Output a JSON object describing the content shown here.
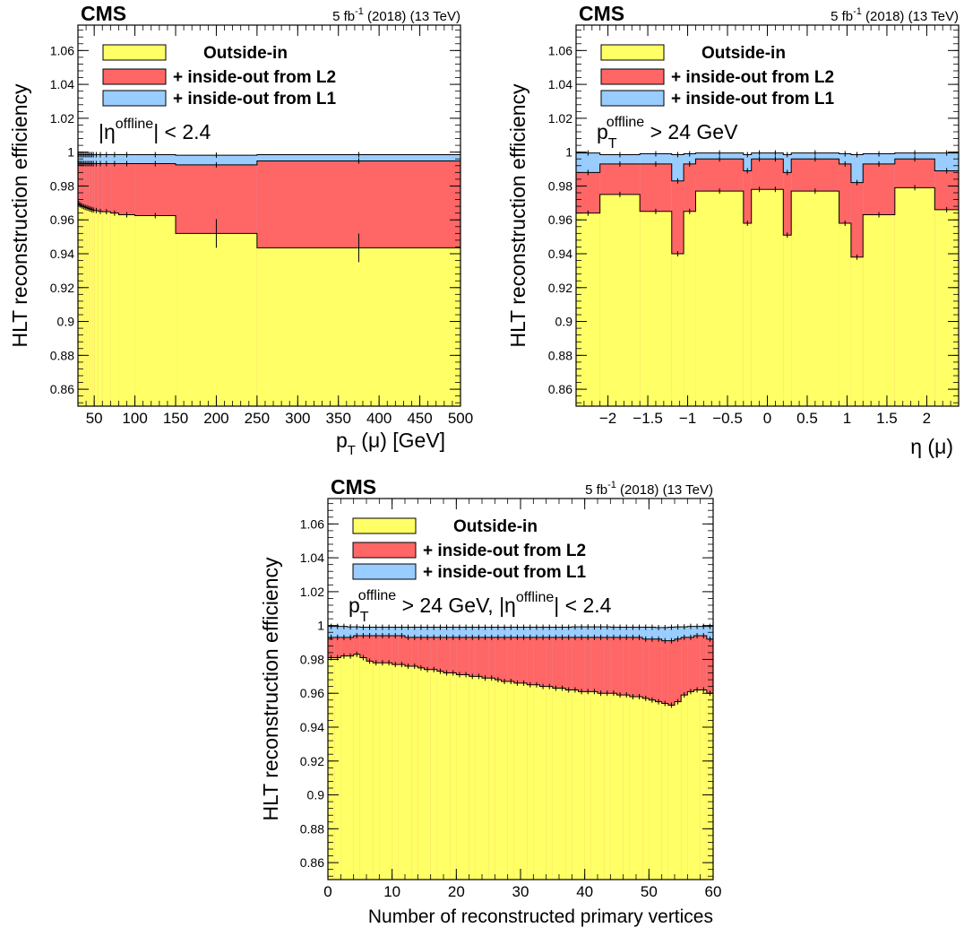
{
  "colors": {
    "outside_in": "#ffff66",
    "l2": "#ff6666",
    "l1": "#99ccff",
    "frame": "#000000"
  },
  "chart_data": [
    {
      "type": "area",
      "experiment": "CMS",
      "lumi_prefix": "5 fb",
      "lumi_sup": "-1",
      "lumi_suffix": " (2018) (13 TeV)",
      "ylabel": "HLT reconstruction efficiency",
      "xlabel": "p_T (μ) [GeV]",
      "xlabel_main": "p",
      "xlabel_sub": "T",
      "xlabel_tail": " (μ) [GeV]",
      "xlim": [
        30,
        500
      ],
      "ylim": [
        0.85,
        1.075
      ],
      "xticks": [
        50,
        100,
        150,
        200,
        250,
        300,
        350,
        400,
        450,
        500
      ],
      "yticks": [
        0.86,
        0.88,
        0.9,
        0.92,
        0.94,
        0.96,
        0.98,
        1,
        1.02,
        1.04,
        1.06
      ],
      "legend_position": "top-left",
      "legend": [
        "Outside-in",
        "+ inside-out from L2",
        "+ inside-out from L1"
      ],
      "annotation": {
        "pre": "|η",
        "sup": "offline",
        "sub": "",
        "post": "| < 2.4"
      },
      "bin_edges": [
        30,
        32,
        34,
        36,
        38,
        40,
        42,
        44,
        46,
        48,
        50,
        55,
        60,
        70,
        80,
        100,
        150,
        250,
        500
      ],
      "series": [
        {
          "name": "Outside-in",
          "values": [
            0.9695,
            0.9688,
            0.9682,
            0.9678,
            0.9674,
            0.9671,
            0.9668,
            0.9664,
            0.9661,
            0.9658,
            0.9655,
            0.965,
            0.9648,
            0.964,
            0.963,
            0.9625,
            0.952,
            0.9435
          ]
        },
        {
          "name": "+ inside-out from L2",
          "values": [
            0.9935,
            0.9934,
            0.9933,
            0.9933,
            0.9932,
            0.9932,
            0.9932,
            0.9932,
            0.9932,
            0.9932,
            0.9932,
            0.9932,
            0.9932,
            0.9932,
            0.9932,
            0.9932,
            0.9925,
            0.9948
          ]
        },
        {
          "name": "+ inside-out from L1",
          "values": [
            0.9985,
            0.9985,
            0.9985,
            0.9985,
            0.9985,
            0.9985,
            0.9985,
            0.9985,
            0.9985,
            0.9985,
            0.9985,
            0.9985,
            0.9985,
            0.9985,
            0.9985,
            0.9985,
            0.9982,
            0.9985
          ]
        }
      ]
    },
    {
      "type": "area",
      "experiment": "CMS",
      "lumi_prefix": "5 fb",
      "lumi_sup": "-1",
      "lumi_suffix": " (2018) (13 TeV)",
      "ylabel": "HLT reconstruction efficiency",
      "xlabel": "η (μ)",
      "xlabel_main": "η (μ)",
      "xlabel_sub": "",
      "xlabel_tail": "",
      "xlim": [
        -2.4,
        2.4
      ],
      "ylim": [
        0.85,
        1.075
      ],
      "xticks": [
        -2,
        -1.5,
        -1,
        -0.5,
        0,
        0.5,
        1,
        1.5,
        2
      ],
      "xtick_labels": [
        "−2",
        "−1.5",
        "−1",
        "−0.5",
        "0",
        "0.5",
        "1",
        "1.5",
        "2"
      ],
      "yticks": [
        0.86,
        0.88,
        0.9,
        0.92,
        0.94,
        0.96,
        0.98,
        1,
        1.02,
        1.04,
        1.06
      ],
      "legend_position": "top-left",
      "legend": [
        "Outside-in",
        "+ inside-out from L2",
        "+ inside-out from L1"
      ],
      "annotation": {
        "pre": "p",
        "sup": "offline",
        "sub": "T",
        "post": " > 24 GeV"
      },
      "bin_edges": [
        -2.4,
        -2.1,
        -1.6,
        -1.2,
        -1.05,
        -0.9,
        -0.3,
        -0.2,
        0.0,
        0.2,
        0.3,
        0.9,
        1.05,
        1.2,
        1.6,
        2.1,
        2.4
      ],
      "series": [
        {
          "name": "Outside-in",
          "values": [
            0.964,
            0.975,
            0.965,
            0.94,
            0.965,
            0.977,
            0.958,
            0.978,
            0.978,
            0.951,
            0.977,
            0.958,
            0.938,
            0.963,
            0.979,
            0.966
          ]
        },
        {
          "name": "+ inside-out from L2",
          "values": [
            0.988,
            0.993,
            0.993,
            0.983,
            0.993,
            0.996,
            0.989,
            0.996,
            0.996,
            0.988,
            0.996,
            0.993,
            0.982,
            0.993,
            0.996,
            0.989
          ]
        },
        {
          "name": "+ inside-out from L1",
          "values": [
            0.9995,
            0.9985,
            0.999,
            0.9985,
            0.999,
            0.9995,
            0.9985,
            0.9995,
            0.9995,
            0.9985,
            0.9995,
            0.999,
            0.9985,
            0.999,
            0.9995,
            0.9995
          ]
        }
      ]
    },
    {
      "type": "area",
      "experiment": "CMS",
      "lumi_prefix": "5 fb",
      "lumi_sup": "-1",
      "lumi_suffix": " (2018) (13 TeV)",
      "ylabel": "HLT reconstruction efficiency",
      "xlabel": "Number of reconstructed primary vertices",
      "xlabel_main": "Number of reconstructed primary vertices",
      "xlabel_sub": "",
      "xlabel_tail": "",
      "xlim": [
        0,
        60
      ],
      "ylim": [
        0.85,
        1.075
      ],
      "xticks": [
        0,
        10,
        20,
        30,
        40,
        50,
        60
      ],
      "yticks": [
        0.86,
        0.88,
        0.9,
        0.92,
        0.94,
        0.96,
        0.98,
        1,
        1.02,
        1.04,
        1.06
      ],
      "legend_position": "top-left",
      "legend": [
        "Outside-in",
        "+ inside-out from L2",
        "+ inside-out from L1"
      ],
      "annotation": {
        "pre": "p",
        "sup": "offline",
        "sub": "T",
        "post": " > 24 GeV, |η",
        "sup2": "offline",
        "post2": "| < 2.4"
      },
      "bin_edges": [
        0,
        1,
        2,
        3,
        4,
        5,
        6,
        7,
        8,
        9,
        10,
        11,
        12,
        13,
        14,
        15,
        16,
        17,
        18,
        19,
        20,
        21,
        22,
        23,
        24,
        25,
        26,
        27,
        28,
        29,
        30,
        31,
        32,
        33,
        34,
        35,
        36,
        37,
        38,
        39,
        40,
        41,
        42,
        43,
        44,
        45,
        46,
        47,
        48,
        49,
        50,
        51,
        52,
        53,
        54,
        55,
        56,
        57,
        58,
        59,
        60
      ],
      "series": [
        {
          "name": "Outside-in",
          "values": [
            0.981,
            0.981,
            0.982,
            0.982,
            0.983,
            0.981,
            0.979,
            0.978,
            0.978,
            0.978,
            0.977,
            0.977,
            0.976,
            0.976,
            0.975,
            0.974,
            0.974,
            0.973,
            0.972,
            0.972,
            0.971,
            0.971,
            0.97,
            0.97,
            0.969,
            0.969,
            0.968,
            0.967,
            0.967,
            0.966,
            0.966,
            0.965,
            0.965,
            0.964,
            0.964,
            0.963,
            0.963,
            0.962,
            0.962,
            0.961,
            0.961,
            0.961,
            0.96,
            0.96,
            0.96,
            0.959,
            0.959,
            0.958,
            0.958,
            0.957,
            0.956,
            0.955,
            0.954,
            0.953,
            0.955,
            0.959,
            0.961,
            0.962,
            0.962,
            0.96
          ]
        },
        {
          "name": "+ inside-out from L2",
          "values": [
            0.993,
            0.993,
            0.993,
            0.993,
            0.994,
            0.994,
            0.994,
            0.994,
            0.994,
            0.994,
            0.994,
            0.994,
            0.993,
            0.993,
            0.993,
            0.993,
            0.993,
            0.993,
            0.993,
            0.993,
            0.993,
            0.993,
            0.993,
            0.993,
            0.993,
            0.993,
            0.993,
            0.993,
            0.993,
            0.993,
            0.993,
            0.993,
            0.993,
            0.993,
            0.993,
            0.993,
            0.993,
            0.993,
            0.993,
            0.993,
            0.993,
            0.993,
            0.993,
            0.993,
            0.993,
            0.993,
            0.993,
            0.993,
            0.993,
            0.992,
            0.992,
            0.992,
            0.991,
            0.991,
            0.992,
            0.993,
            0.993,
            0.994,
            0.994,
            0.992
          ]
        },
        {
          "name": "+ inside-out from L1",
          "values": [
            0.9995,
            0.9995,
            0.9995,
            0.9992,
            0.9992,
            0.999,
            0.999,
            0.999,
            0.999,
            0.999,
            0.999,
            0.999,
            0.999,
            0.999,
            0.999,
            0.999,
            0.999,
            0.999,
            0.999,
            0.999,
            0.999,
            0.999,
            0.999,
            0.999,
            0.999,
            0.999,
            0.999,
            0.999,
            0.999,
            0.999,
            0.999,
            0.999,
            0.999,
            0.999,
            0.999,
            0.999,
            0.999,
            0.999,
            0.9992,
            0.9992,
            0.9992,
            0.9992,
            0.9992,
            0.9992,
            0.999,
            0.999,
            0.999,
            0.999,
            0.999,
            0.999,
            0.999,
            0.9988,
            0.9988,
            0.999,
            0.9992,
            0.9992,
            0.9995,
            0.9995,
            0.9995,
            0.9995
          ]
        }
      ]
    }
  ]
}
